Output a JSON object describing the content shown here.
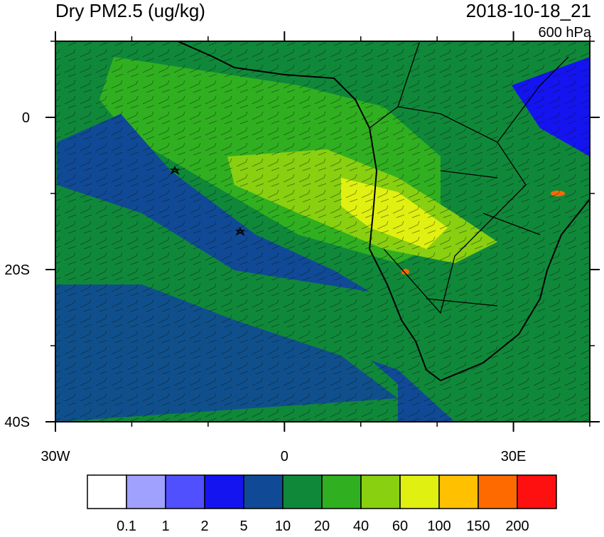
{
  "header": {
    "title": "Dry PM2.5 (ug/kg)",
    "time": "2018-10-18_21",
    "level": "600 hPa"
  },
  "map": {
    "xlim": [
      -30,
      40
    ],
    "ylim": [
      -40,
      10
    ],
    "xticks": [
      {
        "value": -30,
        "label": "30W"
      },
      0,
      {
        "value": 30,
        "label": "30E"
      }
    ],
    "yticks": [
      0,
      {
        "value": -20,
        "label": "20S"
      },
      {
        "value": -40,
        "label": "40S"
      }
    ],
    "xminor": [
      -20,
      -10,
      10,
      20,
      40
    ],
    "yminor": [
      10,
      -10,
      -30
    ]
  },
  "colorbar": {
    "colors": [
      "#ffffff",
      "#a0a0ff",
      "#5050ff",
      "#1414f0",
      "#104a96",
      "#10883a",
      "#30b020",
      "#88d010",
      "#e0f010",
      "#ffc000",
      "#ff6a00",
      "#ff1010"
    ],
    "levels": [
      0.1,
      1,
      2,
      5,
      10,
      20,
      40,
      60,
      100,
      150,
      200
    ]
  }
}
